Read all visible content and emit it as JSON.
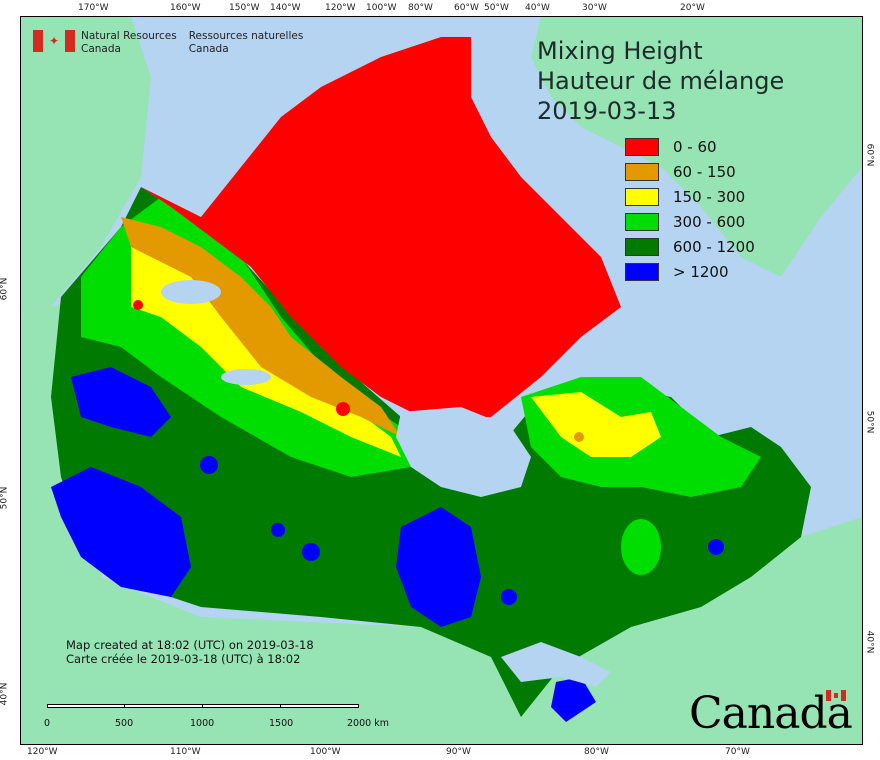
{
  "map": {
    "title_lines": [
      "Mixing Height",
      "Hauteur de mélange",
      "2019-03-13"
    ],
    "legend": [
      {
        "label": "0 - 60",
        "color": "#ff0000"
      },
      {
        "label": "60 - 150",
        "color": "#e39a00"
      },
      {
        "label": "150 - 300",
        "color": "#ffff00"
      },
      {
        "label": "300 - 600",
        "color": "#00dd00"
      },
      {
        "label": "600 - 1200",
        "color": "#007a00"
      },
      {
        "label": "> 1200",
        "color": "#0000ff"
      }
    ],
    "agency": {
      "en_line1": "Natural Resources",
      "en_line2": "Canada",
      "fr_line1": "Ressources naturelles",
      "fr_line2": "Canada"
    },
    "credit_lines": [
      "Map created at 18:02 (UTC) on 2019-03-18",
      "Carte créée le 2019-03-18 (UTC) à 18:02"
    ],
    "scalebar_labels": [
      "0",
      "500",
      "1000",
      "1500",
      "2000  km"
    ],
    "wordmark": "Canada",
    "top_ticks": [
      "170°W",
      "160°W",
      "150°W",
      "140°W",
      "120°W",
      "100°W",
      "80°W",
      "60°W",
      "50°W",
      "40°W",
      "30°W",
      "20°W"
    ],
    "bottom_ticks": [
      "120°W",
      "110°W",
      "100°W",
      "90°W",
      "80°W",
      "70°W"
    ],
    "left_ticks": [
      "60°N",
      "50°N",
      "40°N"
    ],
    "right_ticks": [
      "60°N",
      "50°N",
      "40°N"
    ],
    "colors": {
      "ocean": "#b5d4f2",
      "foreign_land": "#96e3b4",
      "lake": "#b5d4f2"
    }
  }
}
